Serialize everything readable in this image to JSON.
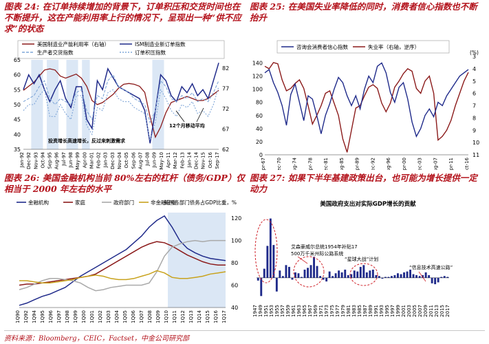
{
  "titles": {
    "fig24": "图表 24: 在订单持续增加的背景下，订单积压和交货时间也在不断提升，这在产能利用率上行的情况下，呈现出一种“供不应求”的状态",
    "fig25": "图表 25: 在美国失业率降低的同时，消费者信心指数也不断抬升",
    "fig26": "图表 26: 美国金融机构当前 80%左右的杠杆（债务/GDP）仅相当于 2000 年左右的水平",
    "fig27": "图表 27: 如果下半年基建政策出台，也可能为增长提供一定动力"
  },
  "footer": "资料来源：Bloomberg，CEIC，Factset，中金公司研究部",
  "colors": {
    "title_red": "#b3121b",
    "navy": "#1f2a8a",
    "darkred": "#8b1a1a",
    "gray": "#a9a9a9",
    "gold": "#c8a21c",
    "shade": "#dbe7f5",
    "lightblue": "#7fa6d8"
  },
  "chart_data": [
    {
      "id": "fig24",
      "type": "line",
      "x_ticks": [
        "Jan-92",
        "Dec-92",
        "Nov-93",
        "Oct-94",
        "Sep-95",
        "Aug-96",
        "Jul-97",
        "Jun-98",
        "May-99",
        "Apr-00",
        "Mar-01",
        "Feb-02",
        "Jan-03",
        "Dec-03",
        "Nov-04",
        "Oct-05",
        "Sep-06",
        "Aug-07",
        "Jul-08",
        "Jun-09",
        "May-10",
        "Apr-11",
        "Mar-12",
        "Feb-13",
        "Jan-14",
        "Dec-14",
        "Nov-15",
        "Oct-16",
        "Sep-17"
      ],
      "y_left_ticks": [
        "35",
        "40",
        "45",
        "50",
        "55",
        "60",
        "65"
      ],
      "y_right_ticks": [
        "62",
        "67",
        "72",
        "77",
        "82"
      ],
      "y_left_range": [
        35,
        65
      ],
      "y_right_range": [
        62,
        84
      ],
      "legend": [
        "美国制造业产能利用率（右轴）",
        "ISM制造业新订单指数",
        "生产者交货指数",
        "订单积压指数"
      ],
      "annotations": [
        "投资增长高速增长，反过来刺激需求",
        "12个月移动平均"
      ],
      "series": [
        {
          "name": "美国制造业产能利用率（右轴）",
          "axis": "right",
          "values": [
            76.5,
            77.5,
            78.5,
            80.0,
            81.5,
            81.8,
            81.5,
            80.0,
            79.5,
            80.0,
            80.5,
            79.5,
            77.5,
            74.0,
            73.0,
            73.5,
            74.5,
            75.5,
            77.0,
            78.0,
            78.2,
            78.0,
            77.5,
            76.0,
            70.0,
            65.0,
            67.5,
            71.0,
            73.5,
            74.0,
            74.5,
            75.0,
            74.5,
            74.0,
            74.0,
            74.5,
            75.5,
            76.5
          ]
        },
        {
          "name": "ISM制造业新订单指数",
          "axis": "left",
          "values": [
            55,
            60,
            57,
            60,
            55,
            51,
            55,
            58,
            52,
            49,
            56,
            56,
            45,
            42,
            58,
            55,
            62,
            59,
            56,
            55,
            54,
            53,
            52,
            48,
            37,
            48,
            60,
            58,
            53,
            51,
            56,
            54,
            57,
            53,
            55,
            52,
            58,
            64
          ]
        },
        {
          "name": "生产者交货指数",
          "axis": "left",
          "values": [
            51,
            52,
            53,
            56,
            58,
            52,
            50,
            52,
            51,
            50,
            54,
            55,
            48,
            45,
            53,
            52,
            58,
            60,
            56,
            55,
            54,
            52,
            51,
            50,
            44,
            48,
            58,
            56,
            52,
            51,
            53,
            52,
            54,
            51,
            52,
            51,
            54,
            58
          ]
        },
        {
          "name": "订单积压指数",
          "axis": "left",
          "values": [
            48,
            50,
            50,
            53,
            55,
            46,
            46,
            50,
            47,
            45,
            53,
            53,
            43,
            40,
            49,
            48,
            54,
            55,
            52,
            51,
            51,
            49,
            48,
            47,
            38,
            44,
            55,
            52,
            48,
            46,
            50,
            49,
            51,
            47,
            48,
            46,
            50,
            56
          ]
        }
      ]
    },
    {
      "id": "fig25",
      "type": "line",
      "x_ticks": [
        "Apr-67",
        "Dec-70",
        "Aug-74",
        "Apr-78",
        "Dec-81",
        "Aug-85",
        "Apr-89",
        "Dec-92",
        "Aug-96",
        "Apr-00",
        "Dec-03",
        "Aug-07",
        "Apr-11",
        "Oct-16"
      ],
      "y_left_ticks": [
        "0",
        "20",
        "40",
        "60",
        "80",
        "100",
        "120",
        "140"
      ],
      "y_right_ticks": [
        "3",
        "4",
        "5",
        "6",
        "7",
        "8",
        "9",
        "10",
        "11"
      ],
      "y_right_unit": "(%)",
      "y_left_range": [
        0,
        150
      ],
      "y_right_range": [
        3,
        11
      ],
      "y_right_inverted": true,
      "legend": [
        "咨询会消费者信心指数",
        "失业率（右轴，逆序）"
      ],
      "series": [
        {
          "name": "咨询会消费者信心指数",
          "axis": "left",
          "values": [
            125,
            130,
            110,
            95,
            75,
            45,
            92,
            108,
            80,
            52,
            90,
            85,
            60,
            32,
            60,
            78,
            100,
            118,
            110,
            90,
            75,
            90,
            70,
            100,
            120,
            110,
            135,
            140,
            125,
            95,
            80,
            103,
            110,
            85,
            50,
            28,
            40,
            60,
            70,
            58,
            80,
            75,
            90,
            100,
            110,
            120,
            125,
            130
          ]
        },
        {
          "name": "失业率（右轴，逆序）",
          "axis": "right",
          "values": [
            3.8,
            4.0,
            3.5,
            3.6,
            4.9,
            5.8,
            5.6,
            5.2,
            4.9,
            5.6,
            7.0,
            8.5,
            7.8,
            7.0,
            6.0,
            5.8,
            6.8,
            7.8,
            9.7,
            10.8,
            9.0,
            7.2,
            7.0,
            6.2,
            5.5,
            5.3,
            5.6,
            6.8,
            7.5,
            6.8,
            5.5,
            5.0,
            4.4,
            4.0,
            4.2,
            5.6,
            6.0,
            5.0,
            4.6,
            6.0,
            9.8,
            9.5,
            9.0,
            8.2,
            7.0,
            6.0,
            5.0,
            4.3
          ]
        }
      ]
    },
    {
      "id": "fig26",
      "type": "line",
      "x_ticks": [
        "1Q90",
        "1Q92",
        "1Q94",
        "1Q95",
        "1Q96",
        "1Q97",
        "1Q98",
        "1Q99",
        "1Q00",
        "1Q01",
        "1Q02",
        "1Q03",
        "1Q04",
        "1Q05",
        "1Q06",
        "1Q07",
        "1Q08",
        "1Q09",
        "1Q10",
        "1Q11",
        "1Q12",
        "1Q13",
        "1Q14",
        "1Q15",
        "1Q16",
        "1Q17"
      ],
      "y_right_ticks": [
        "40",
        "60",
        "80",
        "100",
        "120"
      ],
      "y_right_unit": "%",
      "y_range": [
        40,
        125
      ],
      "legend": [
        "金融机构",
        "家庭",
        "政府部门",
        "非金融企业",
        "美国各部门债务占GDP比重，%"
      ],
      "series": [
        {
          "name": "金融机构",
          "values": [
            42,
            44,
            47,
            50,
            52,
            55,
            58,
            63,
            68,
            72,
            76,
            80,
            84,
            88,
            92,
            98,
            104,
            112,
            118,
            122,
            112,
            100,
            93,
            89,
            86,
            84,
            83,
            82
          ]
        },
        {
          "name": "家庭",
          "values": [
            60,
            61,
            61,
            62,
            63,
            64,
            65,
            66,
            67,
            68,
            70,
            74,
            78,
            82,
            86,
            90,
            94,
            97,
            99,
            98,
            95,
            91,
            87,
            84,
            81,
            79,
            78,
            78
          ]
        },
        {
          "name": "政府部门",
          "values": [
            56,
            58,
            61,
            64,
            66,
            66,
            65,
            64,
            62,
            58,
            55,
            56,
            58,
            59,
            60,
            60,
            60,
            62,
            72,
            86,
            94,
            97,
            99,
            100,
            99,
            100,
            100,
            100
          ]
        },
        {
          "name": "非金融企业",
          "values": [
            64,
            64,
            63,
            62,
            62,
            63,
            64,
            65,
            67,
            68,
            69,
            68,
            66,
            65,
            65,
            66,
            68,
            70,
            73,
            71,
            67,
            66,
            66,
            67,
            68,
            70,
            71,
            72
          ]
        }
      ]
    },
    {
      "id": "fig27",
      "type": "bar",
      "title": "美国政府支出对实际GDP增长的贡献",
      "x_ticks": [
        "1947",
        "1949",
        "1951",
        "1953",
        "1955",
        "1957",
        "1959",
        "1961",
        "1963",
        "1965",
        "1967",
        "1969",
        "1971",
        "1973",
        "1975",
        "1977",
        "1979",
        "1981",
        "1983",
        "1985",
        "1987",
        "1989",
        "1991",
        "1993",
        "1995",
        "1997",
        "1999",
        "2001",
        "2003",
        "2005",
        "2007",
        "2009",
        "2011",
        "2013",
        "2015",
        "2017"
      ],
      "annotations": [
        "艾森豪威尔总统1954年补贴17500万千米州际公路系统",
        "“星球大战”计划",
        "“信息技术高速公路”"
      ],
      "values": [
        -0.3,
        -2.0,
        1.0,
        3.5,
        6.5,
        3.6,
        -1.5,
        0.8,
        0.2,
        1.4,
        1.2,
        -0.2,
        0.6,
        0.5,
        0.1,
        0.9,
        1.1,
        1.4,
        2.3,
        1.3,
        0.2,
        -0.2,
        -0.4,
        0.7,
        0.2,
        0.5,
        0.8,
        0.6,
        0.9,
        0.3,
        0.4,
        0.8,
        0.7,
        1.2,
        1.4,
        0.6,
        0.8,
        0.9,
        0.3,
        0.2,
        -0.1,
        0.1,
        0.1,
        0.2,
        0.3,
        0.5,
        0.4,
        0.6,
        0.7,
        0.9,
        0.4,
        0.3,
        0.2,
        0.3,
        0.6,
        0.3,
        -0.6,
        -0.7,
        -0.5,
        0.1,
        0.2,
        0.1
      ],
      "y_range": [
        -2.5,
        7
      ]
    }
  ]
}
